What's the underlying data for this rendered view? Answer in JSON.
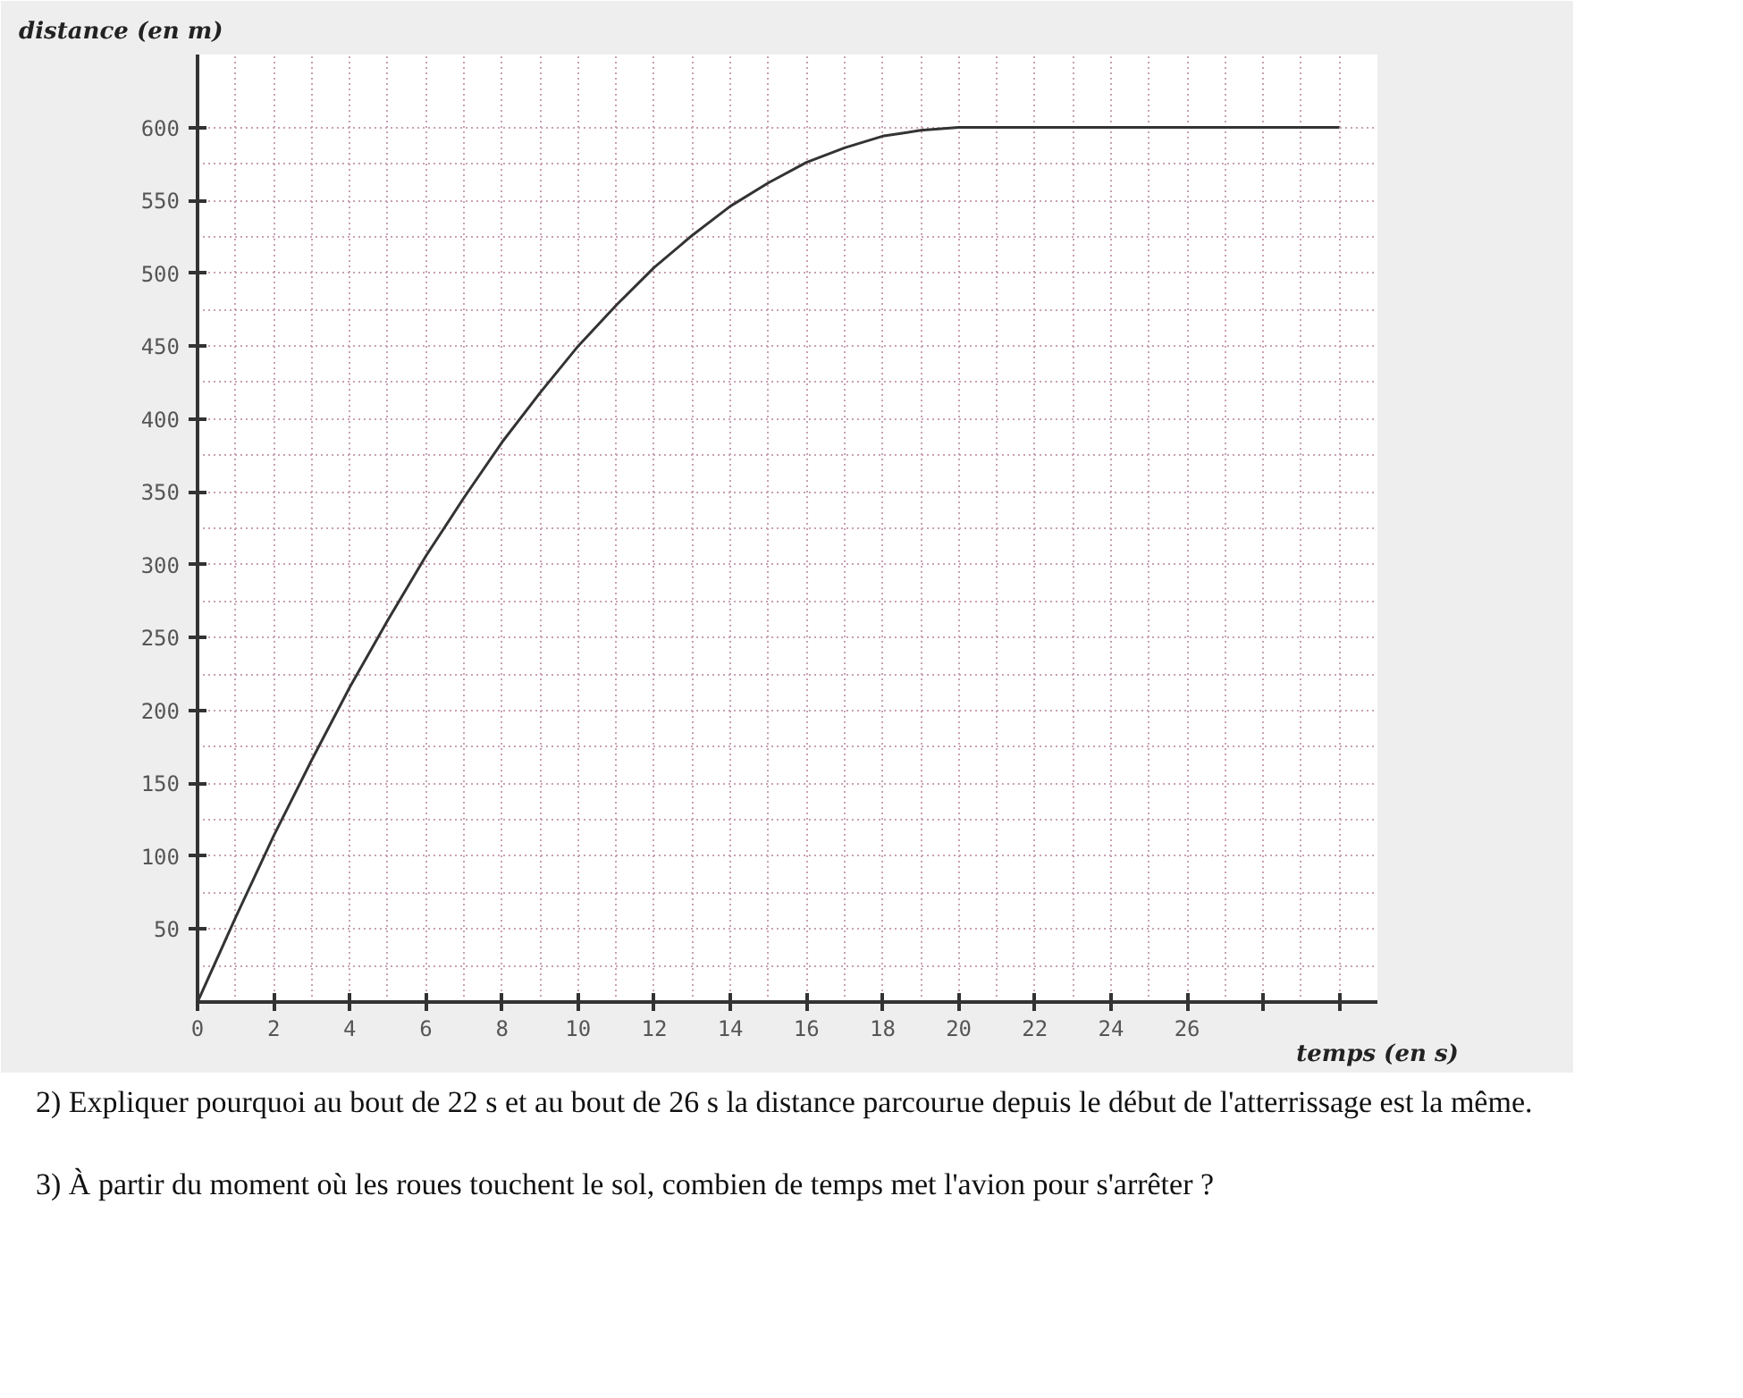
{
  "chart_data": {
    "type": "line",
    "xlabel": "temps (en s)",
    "ylabel": "distance (en m)",
    "x": [
      0,
      1,
      2,
      3,
      4,
      5,
      6,
      7,
      8,
      9,
      10,
      11,
      12,
      13,
      14,
      15,
      16,
      17,
      18,
      19,
      20,
      30
    ],
    "series": [
      {
        "color": "#333333",
        "values": [
          0,
          58,
          114,
          166,
          216,
          262,
          306,
          346,
          384,
          418,
          450,
          478,
          504,
          526,
          546,
          562,
          576,
          586,
          594,
          598,
          600,
          600
        ]
      }
    ],
    "xlim": [
      0,
      31
    ],
    "ylim": [
      0,
      650
    ],
    "xticks": [
      {
        "value": 0,
        "label": "0"
      },
      2,
      4,
      6,
      8,
      10,
      12,
      14,
      16,
      18,
      20,
      22,
      24,
      26,
      {
        "value": 28,
        "label": null
      },
      {
        "value": 30,
        "label": null
      }
    ],
    "yticks": [
      50,
      100,
      150,
      200,
      250,
      300,
      350,
      400,
      450,
      500,
      550,
      600
    ],
    "grid": true,
    "marker": "none",
    "line_style": "solid",
    "annotations": [
      "2) Expliquer pourquoi au bout de 22 s et au bout de 26 s la distance parcourue depuis le début de l'atterrissage est la même.",
      "3) À partir du moment où les roues touchent le sol, combien de temps met l'avion pour s'arrêter ?"
    ]
  }
}
